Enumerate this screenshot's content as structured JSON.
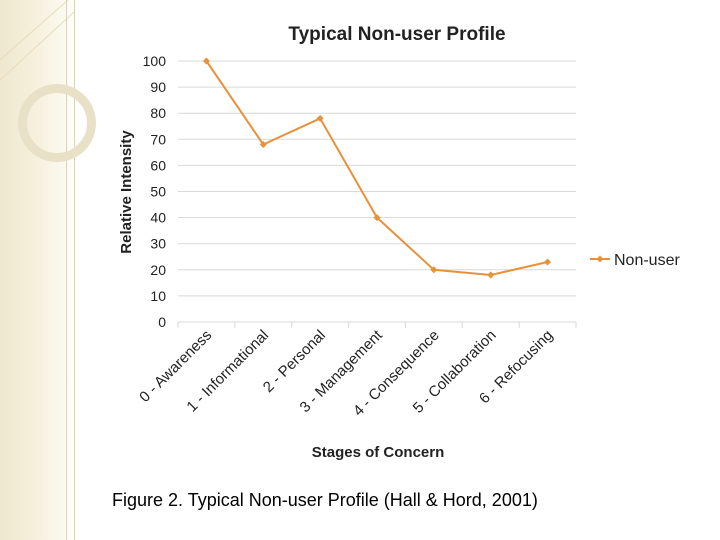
{
  "caption": "Figure 2. Typical Non-user Profile (Hall & Hord, 2001)",
  "chart_data": {
    "type": "line",
    "title": "Typical Non-user Profile",
    "xlabel": "Stages of Concern",
    "ylabel": "Relative Intensity",
    "categories": [
      "0 - Awareness",
      "1 - Informational",
      "2 - Personal",
      "3 - Management",
      "4 - Consequence",
      "5 - Collaboration",
      "6 - Refocusing"
    ],
    "series": [
      {
        "name": "Non-user",
        "values": [
          100,
          68,
          78,
          40,
          20,
          18,
          23
        ]
      }
    ],
    "ylim": [
      0,
      100
    ],
    "yticks": [
      "0",
      "10",
      "20",
      "30",
      "40",
      "50",
      "60",
      "70",
      "80",
      "90",
      "100"
    ],
    "grid": true,
    "legend_position": "right",
    "series_color": "#E8913A",
    "grid_color": "#d9d9d9"
  }
}
